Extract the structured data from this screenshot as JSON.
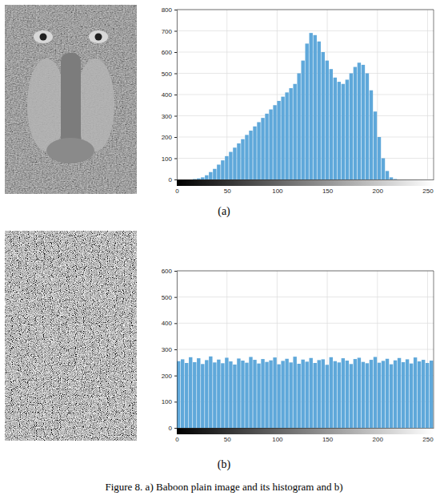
{
  "chart_data": [
    {
      "type": "histogram",
      "bins": [
        0,
        4,
        8,
        12,
        16,
        20,
        24,
        28,
        32,
        36,
        40,
        44,
        48,
        52,
        56,
        60,
        64,
        68,
        72,
        76,
        80,
        84,
        88,
        92,
        96,
        100,
        104,
        108,
        112,
        116,
        120,
        124,
        128,
        132,
        136,
        140,
        144,
        148,
        152,
        156,
        160,
        164,
        168,
        172,
        176,
        180,
        184,
        188,
        192,
        196,
        200,
        204,
        208,
        212,
        216,
        220,
        224,
        228,
        232,
        236,
        240,
        244,
        248,
        252,
        256
      ],
      "values": [
        0,
        0,
        0,
        0,
        2,
        5,
        10,
        20,
        35,
        50,
        70,
        90,
        110,
        130,
        150,
        170,
        190,
        210,
        230,
        250,
        270,
        290,
        310,
        330,
        350,
        370,
        390,
        410,
        430,
        450,
        500,
        560,
        640,
        690,
        680,
        650,
        600,
        560,
        520,
        480,
        460,
        450,
        470,
        500,
        530,
        550,
        540,
        500,
        420,
        320,
        200,
        100,
        40,
        10,
        2,
        0,
        0,
        0,
        0,
        0,
        0,
        0,
        0,
        0
      ],
      "color": "#5fa8da",
      "xlim": [
        0,
        256
      ],
      "xticks": [
        0,
        50,
        100,
        150,
        200,
        250
      ],
      "ylim": [
        0,
        800
      ],
      "yticks": [
        0,
        100,
        200,
        300,
        400,
        500,
        600,
        700,
        800
      ],
      "grid": true
    },
    {
      "type": "histogram",
      "bins": [
        0,
        4,
        8,
        12,
        16,
        20,
        24,
        28,
        32,
        36,
        40,
        44,
        48,
        52,
        56,
        60,
        64,
        68,
        72,
        76,
        80,
        84,
        88,
        92,
        96,
        100,
        104,
        108,
        112,
        116,
        120,
        124,
        128,
        132,
        136,
        140,
        144,
        148,
        152,
        156,
        160,
        164,
        168,
        172,
        176,
        180,
        184,
        188,
        192,
        196,
        200,
        204,
        208,
        212,
        216,
        220,
        224,
        228,
        232,
        236,
        240,
        244,
        248,
        252,
        256
      ],
      "values": [
        255,
        262,
        248,
        270,
        251,
        266,
        244,
        259,
        273,
        250,
        261,
        247,
        268,
        254,
        242,
        265,
        257,
        249,
        271,
        260,
        246,
        263,
        252,
        258,
        269,
        243,
        256,
        264,
        250,
        272,
        245,
        261,
        253,
        267,
        248,
        259,
        262,
        241,
        270,
        255,
        250,
        266,
        257,
        244,
        263,
        268,
        252,
        247,
        260,
        271,
        249,
        256,
        264,
        243,
        258,
        267,
        251,
        262,
        246,
        269,
        254,
        260,
        248,
        257
      ],
      "color": "#5fa8da",
      "xlim": [
        0,
        256
      ],
      "xticks": [
        0,
        50,
        100,
        150,
        200,
        250
      ],
      "ylim": [
        0,
        600
      ],
      "yticks": [
        0,
        100,
        200,
        300,
        400,
        500,
        600
      ],
      "grid": true
    }
  ],
  "figure": {
    "panel_labels": [
      "(a)",
      "(b)"
    ],
    "caption": "Figure 8. a) Baboon plain image and its histogram and b)"
  }
}
